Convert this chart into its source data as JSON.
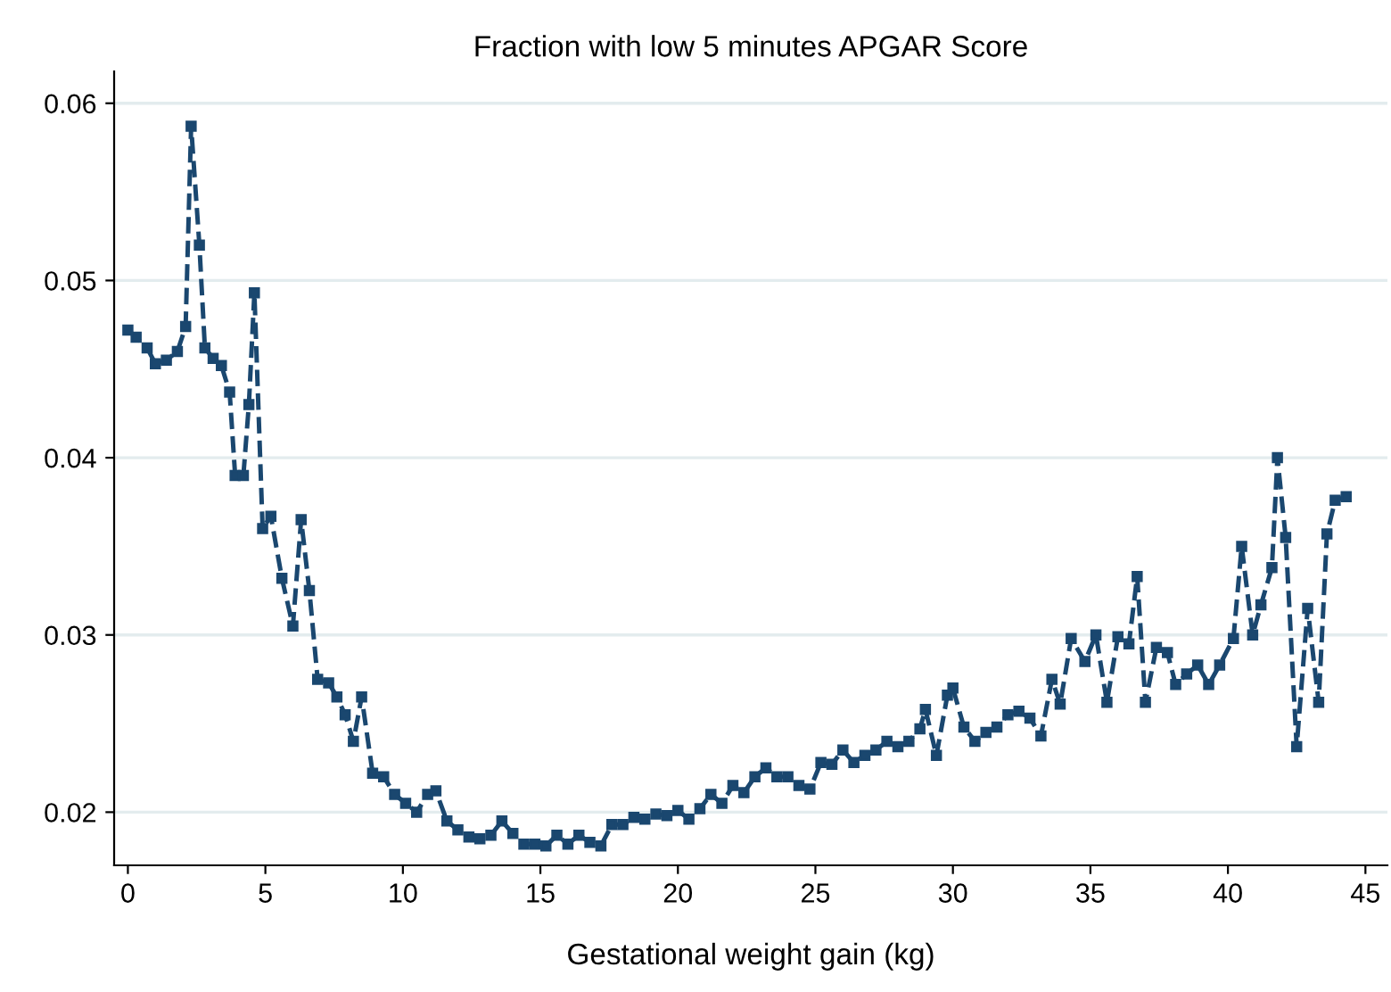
{
  "chart_data": {
    "type": "line",
    "title": "Fraction with low 5 minutes APGAR Score",
    "xlabel": "Gestational weight gain (kg)",
    "x": [
      0.0,
      0.3,
      0.7,
      1.0,
      1.4,
      1.8,
      2.1,
      2.3,
      2.6,
      2.8,
      3.1,
      3.4,
      3.7,
      3.9,
      4.2,
      4.4,
      4.6,
      4.9,
      5.2,
      5.6,
      6.0,
      6.3,
      6.6,
      6.9,
      7.3,
      7.6,
      7.9,
      8.2,
      8.5,
      8.9,
      9.3,
      9.7,
      10.1,
      10.5,
      10.9,
      11.2,
      11.6,
      12.0,
      12.4,
      12.8,
      13.2,
      13.6,
      14.0,
      14.4,
      14.8,
      15.2,
      15.6,
      16.0,
      16.4,
      16.8,
      17.2,
      17.6,
      18.0,
      18.4,
      18.8,
      19.2,
      19.6,
      20.0,
      20.4,
      20.8,
      21.2,
      21.6,
      22.0,
      22.4,
      22.8,
      23.2,
      23.6,
      24.0,
      24.4,
      24.8,
      25.2,
      25.6,
      26.0,
      26.4,
      26.8,
      27.2,
      27.6,
      28.0,
      28.4,
      28.8,
      29.0,
      29.4,
      29.8,
      30.0,
      30.4,
      30.8,
      31.2,
      31.6,
      32.0,
      32.4,
      32.8,
      33.2,
      33.6,
      33.9,
      34.3,
      34.8,
      35.2,
      35.6,
      36.0,
      36.4,
      36.7,
      37.0,
      37.4,
      37.8,
      38.1,
      38.5,
      38.9,
      39.3,
      39.7,
      40.2,
      40.5,
      40.9,
      41.2,
      41.6,
      41.8,
      42.1,
      42.5,
      42.9,
      43.3,
      43.6,
      43.9,
      44.3
    ],
    "series": [
      {
        "color": "#1a476f",
        "values": [
          0.0472,
          0.0468,
          0.0462,
          0.0453,
          0.0455,
          0.046,
          0.0474,
          0.0587,
          0.052,
          0.0462,
          0.0456,
          0.0452,
          0.0437,
          0.039,
          0.039,
          0.043,
          0.0493,
          0.036,
          0.0367,
          0.0332,
          0.0305,
          0.0365,
          0.0325,
          0.0275,
          0.0273,
          0.0265,
          0.0255,
          0.024,
          0.0265,
          0.0222,
          0.022,
          0.021,
          0.0205,
          0.02,
          0.021,
          0.0212,
          0.0195,
          0.019,
          0.0186,
          0.0185,
          0.0187,
          0.0195,
          0.0188,
          0.0182,
          0.0182,
          0.0181,
          0.0187,
          0.0182,
          0.0187,
          0.0183,
          0.0181,
          0.0193,
          0.0193,
          0.0197,
          0.0196,
          0.0199,
          0.0198,
          0.0201,
          0.0196,
          0.0202,
          0.021,
          0.0205,
          0.0215,
          0.0211,
          0.022,
          0.0225,
          0.022,
          0.022,
          0.0215,
          0.0213,
          0.0228,
          0.0227,
          0.0235,
          0.0228,
          0.0232,
          0.0235,
          0.024,
          0.0237,
          0.024,
          0.0247,
          0.0258,
          0.0232,
          0.0266,
          0.027,
          0.0248,
          0.024,
          0.0245,
          0.0248,
          0.0255,
          0.0257,
          0.0253,
          0.0243,
          0.0275,
          0.0261,
          0.0298,
          0.0285,
          0.03,
          0.0262,
          0.0299,
          0.0295,
          0.0333,
          0.0262,
          0.0293,
          0.029,
          0.0272,
          0.0278,
          0.0283,
          0.0272,
          0.0283,
          0.0298,
          0.035,
          0.03,
          0.0317,
          0.0338,
          0.04,
          0.0355,
          0.0237,
          0.0315,
          0.0262,
          0.0357,
          0.0376,
          0.0378
        ]
      }
    ],
    "xlim": [
      -0.5,
      45.8
    ],
    "xticks": [
      0,
      5,
      10,
      15,
      20,
      25,
      30,
      35,
      40,
      45
    ],
    "ylim": [
      0.017,
      0.0618
    ],
    "yticks": [
      0.02,
      0.03,
      0.04,
      0.05,
      0.06
    ],
    "grid": "y",
    "marker": "square",
    "line_style": "dashed",
    "legend": false
  }
}
